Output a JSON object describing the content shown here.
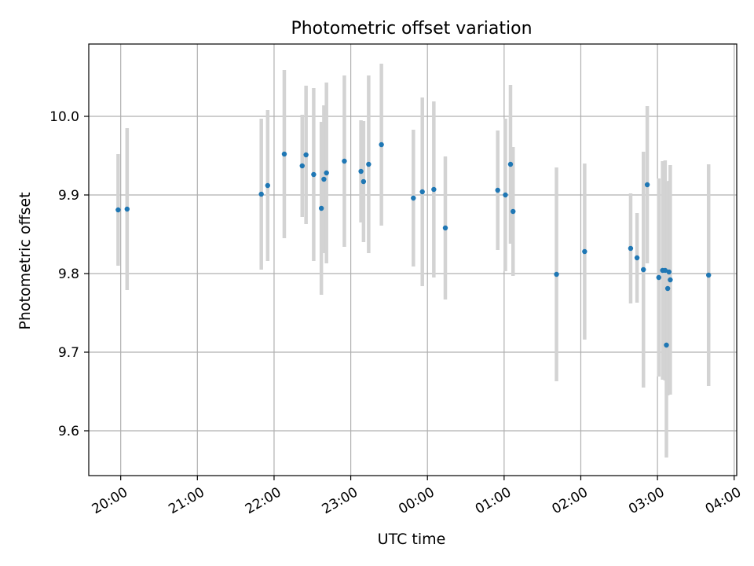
{
  "chart_data": {
    "type": "scatter",
    "title": "Photometric offset variation",
    "xlabel": "UTC time",
    "ylabel": "Photometric offset",
    "xlim": [
      "19:35",
      "04:02"
    ],
    "ylim": [
      9.543,
      10.092
    ],
    "grid": true,
    "legend": "none",
    "x_ticks": [
      "20:00",
      "21:00",
      "22:00",
      "23:00",
      "00:00",
      "01:00",
      "02:00",
      "03:00",
      "04:00"
    ],
    "y_ticks": [
      "9.6",
      "9.7",
      "9.8",
      "9.9",
      "10.0"
    ],
    "marker_color": "#1f77b4",
    "errorbar_color": "#d3d3d3",
    "points": [
      {
        "t": "19:58",
        "y": 9.881,
        "err": 0.071
      },
      {
        "t": "20:05",
        "y": 9.882,
        "err": 0.103
      },
      {
        "t": "21:50",
        "y": 9.901,
        "err": 0.096
      },
      {
        "t": "21:55",
        "y": 9.912,
        "err": 0.096
      },
      {
        "t": "22:08",
        "y": 9.952,
        "err": 0.107
      },
      {
        "t": "22:22",
        "y": 9.937,
        "err": 0.065
      },
      {
        "t": "22:25",
        "y": 9.951,
        "err": 0.088
      },
      {
        "t": "22:31",
        "y": 9.926,
        "err": 0.11
      },
      {
        "t": "22:37",
        "y": 9.883,
        "err": 0.11
      },
      {
        "t": "22:39",
        "y": 9.92,
        "err": 0.094
      },
      {
        "t": "22:41",
        "y": 9.928,
        "err": 0.115
      },
      {
        "t": "22:55",
        "y": 9.943,
        "err": 0.109
      },
      {
        "t": "23:08",
        "y": 9.93,
        "err": 0.065
      },
      {
        "t": "23:10",
        "y": 9.917,
        "err": 0.077
      },
      {
        "t": "23:14",
        "y": 9.939,
        "err": 0.113
      },
      {
        "t": "23:24",
        "y": 9.964,
        "err": 0.103
      },
      {
        "t": "23:49",
        "y": 9.896,
        "err": 0.087
      },
      {
        "t": "23:56",
        "y": 9.904,
        "err": 0.12
      },
      {
        "t": "00:05",
        "y": 9.907,
        "err": 0.112
      },
      {
        "t": "00:14",
        "y": 9.858,
        "err": 0.091
      },
      {
        "t": "00:55",
        "y": 9.906,
        "err": 0.076
      },
      {
        "t": "01:01",
        "y": 9.9,
        "err": 0.097
      },
      {
        "t": "01:05",
        "y": 9.939,
        "err": 0.101
      },
      {
        "t": "01:07",
        "y": 9.879,
        "err": 0.082
      },
      {
        "t": "01:41",
        "y": 9.799,
        "err": 0.136
      },
      {
        "t": "02:03",
        "y": 9.828,
        "err": 0.112
      },
      {
        "t": "02:39",
        "y": 9.832,
        "err": 0.07
      },
      {
        "t": "02:44",
        "y": 9.82,
        "err": 0.057
      },
      {
        "t": "02:49",
        "y": 9.805,
        "err": 0.15
      },
      {
        "t": "02:52",
        "y": 9.913,
        "err": 0.1
      },
      {
        "t": "03:01",
        "y": 9.795,
        "err": 0.126
      },
      {
        "t": "03:04",
        "y": 9.804,
        "err": 0.139
      },
      {
        "t": "03:06",
        "y": 9.804,
        "err": 0.14
      },
      {
        "t": "03:07",
        "y": 9.709,
        "err": 0.143
      },
      {
        "t": "03:08",
        "y": 9.781,
        "err": 0.136
      },
      {
        "t": "03:09",
        "y": 9.802,
        "err": 0.116
      },
      {
        "t": "03:10",
        "y": 9.792,
        "err": 0.146
      },
      {
        "t": "03:40",
        "y": 9.798,
        "err": 0.141
      }
    ]
  }
}
